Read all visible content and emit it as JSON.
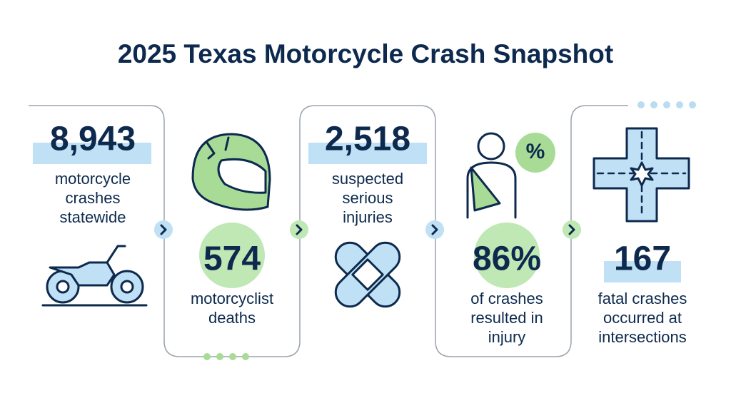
{
  "header": {
    "title": "2025 Texas Motorcycle Crash Snapshot"
  },
  "stats": [
    {
      "value": "8,943",
      "lines": [
        "motorcycle",
        "crashes",
        "statewide"
      ]
    },
    {
      "value": "574",
      "lines": [
        "motorcyclist",
        "deaths"
      ]
    },
    {
      "value": "2,518",
      "lines": [
        "suspected",
        "serious",
        "injuries"
      ]
    },
    {
      "value": "86%",
      "lines": [
        "of crashes",
        "resulted in",
        "injury"
      ]
    },
    {
      "value": "167",
      "lines": [
        "fatal crashes",
        "occurred at",
        "intersections"
      ]
    }
  ],
  "icons": {
    "percent": "%"
  }
}
